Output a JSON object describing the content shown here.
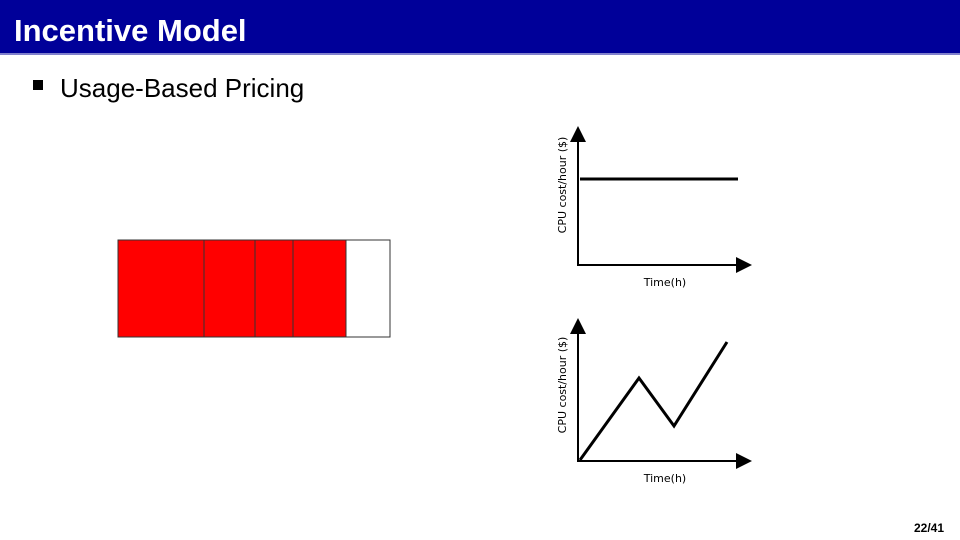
{
  "header": {
    "title": "Incentive Model"
  },
  "bullets": [
    "Usage-Based Pricing"
  ],
  "diagrams": [
    {
      "y_label": "CPU cost/hour ($)",
      "x_label": "Time(h)"
    },
    {
      "y_label": "CPU cost/hour ($)",
      "x_label": "Time(h)"
    }
  ],
  "footer": {
    "page": "22/41"
  }
}
